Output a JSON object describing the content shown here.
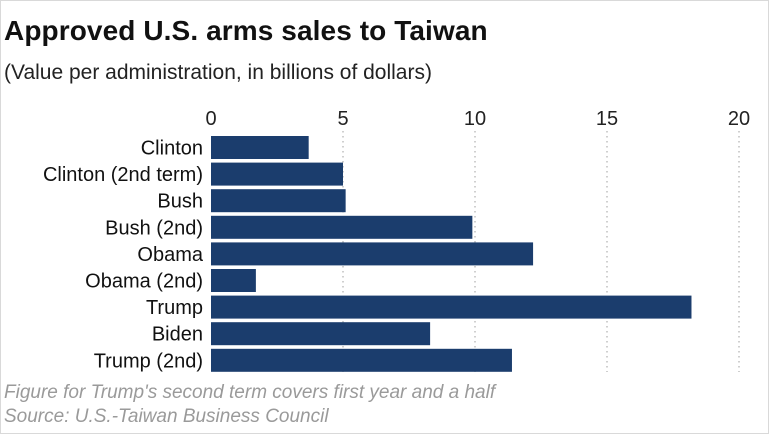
{
  "chart_data": {
    "type": "bar",
    "orientation": "horizontal",
    "title": "Approved U.S. arms sales to Taiwan",
    "subtitle": "(Value per administration, in billions of dollars)",
    "categories": [
      "Clinton",
      "Clinton (2nd term)",
      "Bush",
      "Bush (2nd)",
      "Obama",
      "Obama (2nd)",
      "Trump",
      "Biden",
      "Trump (2nd)"
    ],
    "values": [
      3.7,
      5.0,
      5.1,
      9.9,
      12.2,
      1.7,
      18.2,
      8.3,
      11.4
    ],
    "xticks": [
      0,
      5,
      10,
      15,
      20
    ],
    "xlim": [
      0,
      20
    ],
    "xlabel": "",
    "ylabel": "",
    "grid": "vertical dotted",
    "bar_color": "#1b3d6d",
    "gridline_color": "#b5b5b5"
  },
  "footer": {
    "note": "Figure for Trump's second term covers first year and a half",
    "source": "Source: U.S.-Taiwan Business Council"
  }
}
